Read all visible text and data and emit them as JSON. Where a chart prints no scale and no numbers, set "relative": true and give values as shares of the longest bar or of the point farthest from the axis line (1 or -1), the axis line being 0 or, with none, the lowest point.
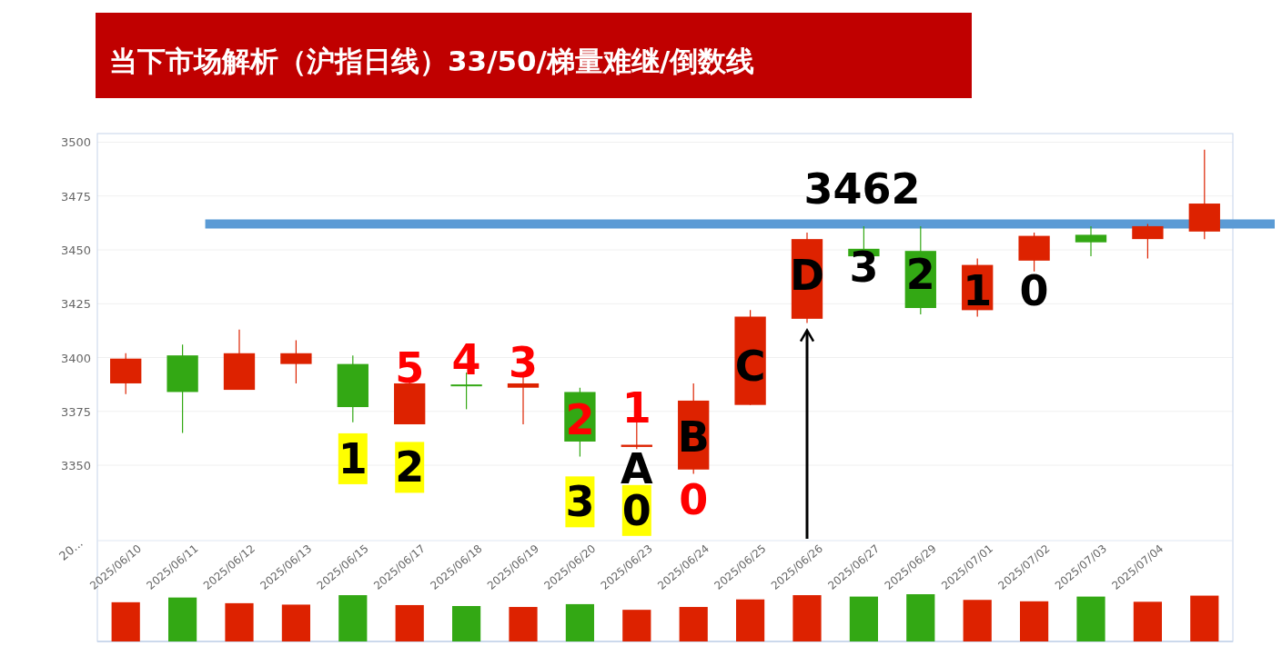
{
  "chart_data": [
    {
      "type": "candlestick",
      "title": "当下市场解析（沪指日线）33/50/梯量难继/倒数线",
      "categories": [
        "2025/06/10",
        "2025/06/11",
        "2025/06/12",
        "2025/06/13",
        "2025/06/15",
        "2025/06/17",
        "2025/06/18",
        "2025/06/19",
        "2025/06/20",
        "2025/06/23",
        "2025/06/24",
        "2025/06/25",
        "2025/06/26",
        "2025/06/27",
        "2025/06/29",
        "2025/07/01",
        "2025/07/02",
        "2025/07/03",
        "2025/07/04",
        null
      ],
      "ohlc": [
        [
          3388,
          3402,
          3383,
          3399.5
        ],
        [
          3401,
          3406,
          3365,
          3384
        ],
        [
          3385,
          3413,
          3385,
          3402
        ],
        [
          3397,
          3408,
          3388,
          3402
        ],
        [
          3397,
          3401,
          3370,
          3377
        ],
        [
          3369,
          3389,
          3369,
          3388
        ],
        [
          3387.5,
          3393,
          3376,
          3387
        ],
        [
          3386,
          3391,
          3369,
          3388
        ],
        [
          3384,
          3386,
          3354,
          3361
        ],
        [
          3358.5,
          3370,
          3357.5,
          3359.5
        ],
        [
          3348,
          3388,
          3346,
          3380
        ],
        [
          3378,
          3422,
          3378,
          3419
        ],
        [
          3418,
          3458,
          3416,
          3455
        ],
        [
          3450.5,
          3461,
          3447,
          3447
        ],
        [
          3449.5,
          3461,
          3420,
          3423
        ],
        [
          3422,
          3446,
          3419,
          3443
        ],
        [
          3445,
          3458,
          3440,
          3456.5
        ],
        [
          3457,
          3461,
          3447,
          3453.5
        ],
        [
          3455,
          3462,
          3446,
          3461
        ],
        [
          3458.5,
          3496.5,
          3455,
          3471.5
        ]
      ],
      "colors": [
        "#dd2200",
        "#33a814",
        "#dd2200",
        "#dd2200",
        "#33a814",
        "#dd2200",
        "#33a814",
        "#dd2200",
        "#33a814",
        "#dd2200",
        "#dd2200",
        "#dd2200",
        "#dd2200",
        "#33a814",
        "#33a814",
        "#dd2200",
        "#dd2200",
        "#33a814",
        "#dd2200",
        "#dd2200"
      ],
      "ylim": [
        3315,
        3504
      ],
      "yticks": [
        3350,
        3375,
        3400,
        3425,
        3450,
        3475,
        3500
      ],
      "grid": "y",
      "ref_lines": [
        {
          "axis": "y",
          "value": 3462,
          "label": "3462",
          "color": "#5b9bd5"
        }
      ],
      "annotations": [
        "1",
        "2",
        "5",
        "4",
        "3",
        "2",
        "3",
        "1",
        "A",
        "0",
        "B",
        "0",
        "C",
        "D",
        "3",
        "2",
        "1",
        "0"
      ]
    },
    {
      "type": "bar",
      "relative": true,
      "categories": [
        null,
        null,
        null,
        null,
        null,
        null,
        null,
        null,
        null,
        null,
        null,
        null,
        null,
        null,
        null,
        null,
        null,
        null,
        null,
        null
      ],
      "values": [
        0.83,
        0.93,
        0.81,
        0.78,
        0.98,
        0.77,
        0.75,
        0.73,
        0.79,
        0.67,
        0.73,
        0.89,
        0.98,
        0.95,
        1,
        0.88,
        0.85,
        0.95,
        0.84,
        0.97
      ],
      "colors": [
        "#dd2200",
        "#33a814",
        "#dd2200",
        "#dd2200",
        "#33a814",
        "#dd2200",
        "#33a814",
        "#dd2200",
        "#33a814",
        "#dd2200",
        "#dd2200",
        "#dd2200",
        "#dd2200",
        "#33a814",
        "#33a814",
        "#dd2200",
        "#dd2200",
        "#33a814",
        "#dd2200",
        "#dd2200"
      ],
      "annotations": [
        "20..."
      ]
    }
  ]
}
